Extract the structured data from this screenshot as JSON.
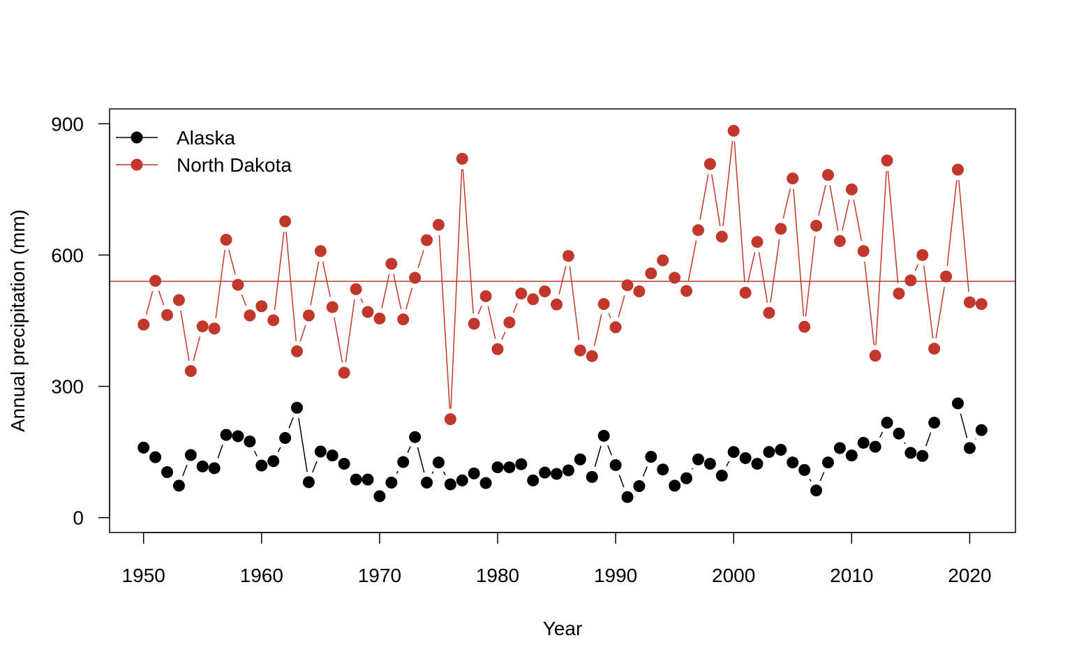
{
  "chart_data": {
    "type": "line",
    "title": "",
    "xlabel": "Year",
    "ylabel": "Annual precipitation (mm)",
    "xlim": [
      1947.12,
      2023.88
    ],
    "ylim": [
      -34,
      934
    ],
    "x_ticks": [
      1950,
      1960,
      1970,
      1980,
      1990,
      2000,
      2010,
      2020
    ],
    "y_ticks": [
      0,
      300,
      600,
      900
    ],
    "x_tick_labels": [
      "1950",
      "1960",
      "1970",
      "1980",
      "1990",
      "2000",
      "2010",
      "2020"
    ],
    "y_tick_labels": [
      "0",
      "300",
      "600",
      "900"
    ],
    "x": [
      1950,
      1951,
      1952,
      1953,
      1954,
      1955,
      1956,
      1957,
      1958,
      1959,
      1960,
      1961,
      1962,
      1963,
      1964,
      1965,
      1966,
      1967,
      1968,
      1969,
      1970,
      1971,
      1972,
      1973,
      1974,
      1975,
      1976,
      1977,
      1978,
      1979,
      1980,
      1981,
      1982,
      1983,
      1984,
      1985,
      1986,
      1987,
      1988,
      1989,
      1990,
      1991,
      1992,
      1993,
      1994,
      1995,
      1996,
      1997,
      1998,
      1999,
      2000,
      2001,
      2002,
      2003,
      2004,
      2005,
      2006,
      2007,
      2008,
      2009,
      2010,
      2011,
      2012,
      2013,
      2014,
      2015,
      2016,
      2017,
      2018,
      2019,
      2020,
      2021
    ],
    "series": [
      {
        "name": "Alaska",
        "color": "#000000",
        "values": [
          160,
          138,
          104,
          73,
          143,
          117,
          113,
          189,
          186,
          174,
          119,
          129,
          182,
          251,
          81,
          151,
          142,
          123,
          87,
          87,
          49,
          80,
          127,
          184,
          80,
          126,
          76,
          85,
          101,
          79,
          115,
          115,
          122,
          85,
          103,
          100,
          108,
          133,
          93,
          187,
          120,
          47,
          72,
          139,
          110,
          73,
          90,
          133,
          123,
          96,
          150,
          136,
          123,
          150,
          155,
          126,
          109,
          62,
          126,
          159,
          142,
          171,
          162,
          217,
          192,
          148,
          141,
          217,
          null,
          261,
          159,
          200
        ]
      },
      {
        "name": "North Dakota",
        "color": "#c1372b",
        "values": [
          441,
          541,
          463,
          497,
          335,
          437,
          432,
          635,
          532,
          462,
          483,
          451,
          677,
          380,
          462,
          609,
          481,
          331,
          522,
          470,
          455,
          580,
          453,
          548,
          634,
          669,
          225,
          820,
          443,
          506,
          385,
          446,
          512,
          499,
          517,
          487,
          598,
          382,
          369,
          488,
          435,
          531,
          517,
          558,
          588,
          548,
          518,
          657,
          808,
          642,
          884,
          514,
          630,
          468,
          660,
          775,
          436,
          667,
          783,
          632,
          750,
          609,
          370,
          816,
          512,
          542,
          600,
          386,
          551,
          795,
          492,
          488
        ]
      }
    ],
    "reference_line": {
      "value": 540,
      "color": "#c1372b",
      "series": "North Dakota"
    },
    "legend": {
      "position": "top-left",
      "entries": [
        "Alaska",
        "North Dakota"
      ]
    },
    "grid": false
  }
}
